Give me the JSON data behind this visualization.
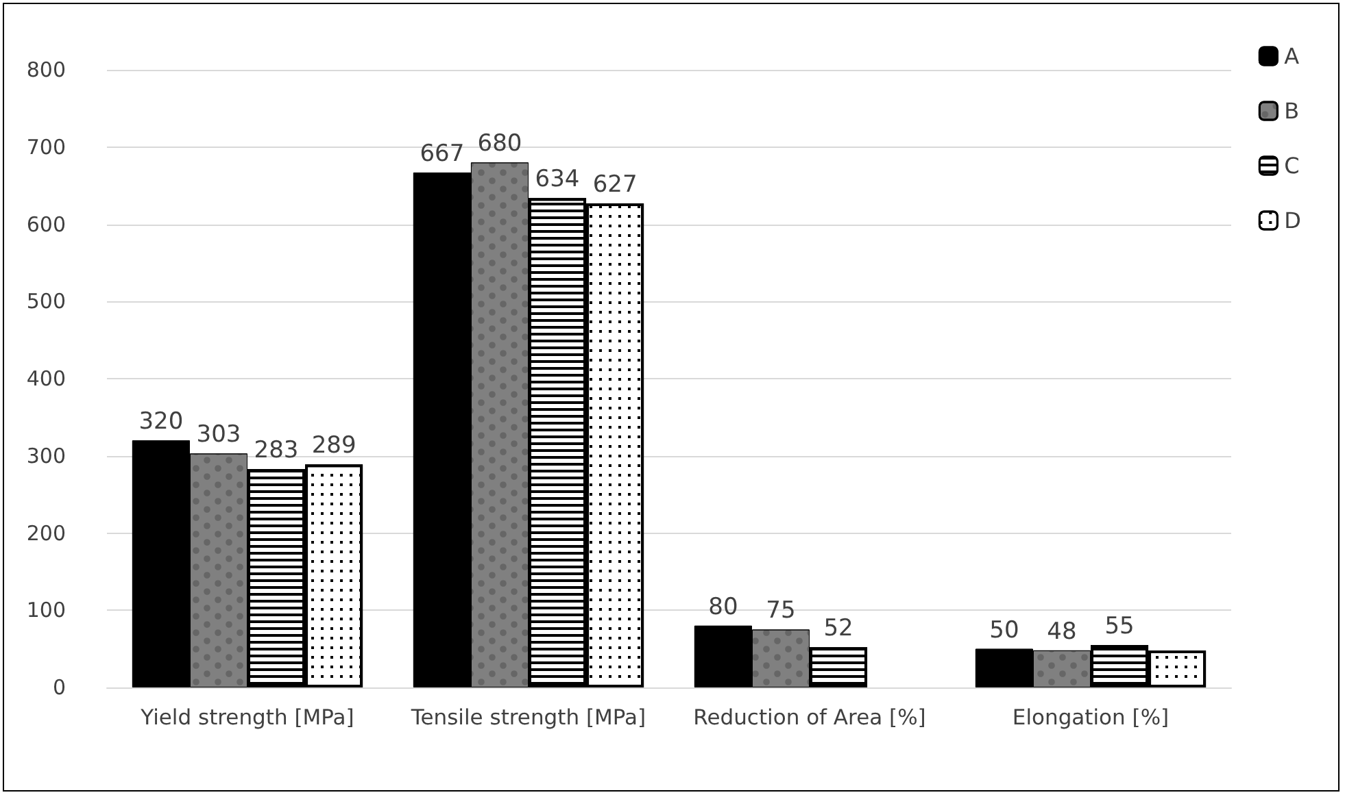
{
  "chart_data": {
    "type": "bar",
    "categories": [
      "Yield strength [MPa]",
      "Tensile strength [MPa]",
      "Reduction of Area [%]",
      "Elongation [%]"
    ],
    "series": [
      {
        "name": "A",
        "color": "#000000",
        "values": [
          320,
          667,
          80,
          50
        ],
        "value_labels": [
          "320",
          "667",
          "80",
          "50"
        ]
      },
      {
        "name": "B",
        "color": "#808080",
        "values": [
          303,
          680,
          75,
          48
        ],
        "value_labels": [
          "303",
          "680",
          "75",
          "48"
        ]
      },
      {
        "name": "C",
        "color": "#ffffff",
        "values": [
          283,
          634,
          52,
          55
        ],
        "value_labels": [
          "283",
          "634",
          "52",
          "55"
        ]
      },
      {
        "name": "D",
        "color": "#ffffff",
        "values": [
          289,
          627,
          null,
          48
        ],
        "value_labels": [
          "289",
          "627",
          null,
          null
        ]
      }
    ],
    "ylim": [
      0,
      800
    ],
    "yticks": [
      0,
      100,
      200,
      300,
      400,
      500,
      600,
      700,
      800
    ],
    "grid": "y",
    "legend": "top right"
  }
}
